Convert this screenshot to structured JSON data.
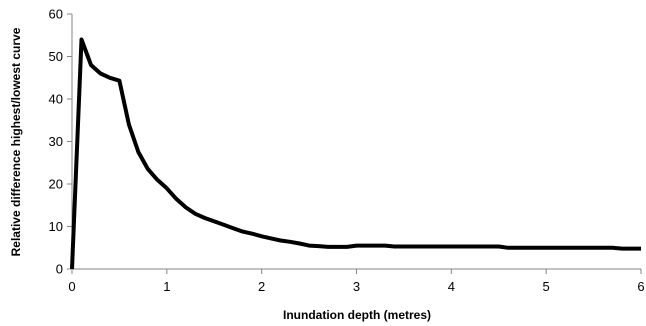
{
  "chart_data": {
    "type": "line",
    "title": "",
    "xlabel": "Inundation depth (metres)",
    "ylabel": "Relative difference highest/lowest curve",
    "xlim": [
      0,
      6
    ],
    "ylim": [
      0,
      60
    ],
    "x_ticks": [
      "0",
      "1",
      "2",
      "3",
      "4",
      "5",
      "6"
    ],
    "y_ticks": [
      "0",
      "10",
      "20",
      "30",
      "40",
      "50",
      "60"
    ],
    "grid": false,
    "legend": "none",
    "series": [
      {
        "color": "#000000",
        "x": [
          0,
          0.1,
          0.2,
          0.3,
          0.4,
          0.5,
          0.6,
          0.7,
          0.8,
          0.9,
          1.0,
          1.1,
          1.2,
          1.3,
          1.4,
          1.5,
          1.6,
          1.7,
          1.8,
          1.9,
          2.0,
          2.1,
          2.2,
          2.3,
          2.4,
          2.5,
          2.6,
          2.7,
          2.8,
          2.9,
          3.0,
          3.1,
          3.2,
          3.3,
          3.4,
          3.5,
          3.6,
          3.7,
          3.8,
          3.9,
          4.0,
          4.1,
          4.2,
          4.3,
          4.4,
          4.5,
          4.6,
          4.7,
          4.8,
          4.9,
          5.0,
          5.1,
          5.2,
          5.3,
          5.4,
          5.5,
          5.6,
          5.7,
          5.8,
          5.9,
          6.0
        ],
        "y": [
          0,
          54,
          48,
          46,
          45,
          44.3,
          34,
          27.5,
          23.5,
          21,
          19,
          16.5,
          14.5,
          13,
          12,
          11.2,
          10.4,
          9.6,
          8.8,
          8.3,
          7.7,
          7.2,
          6.7,
          6.4,
          6.0,
          5.5,
          5.4,
          5.2,
          5.2,
          5.2,
          5.5,
          5.5,
          5.5,
          5.5,
          5.3,
          5.3,
          5.3,
          5.3,
          5.3,
          5.3,
          5.3,
          5.3,
          5.3,
          5.3,
          5.3,
          5.3,
          5.0,
          5.0,
          5.0,
          5.0,
          5.0,
          5.0,
          5.0,
          5.0,
          5.0,
          5.0,
          5.0,
          5.0,
          4.8,
          4.8,
          4.8
        ]
      }
    ]
  }
}
